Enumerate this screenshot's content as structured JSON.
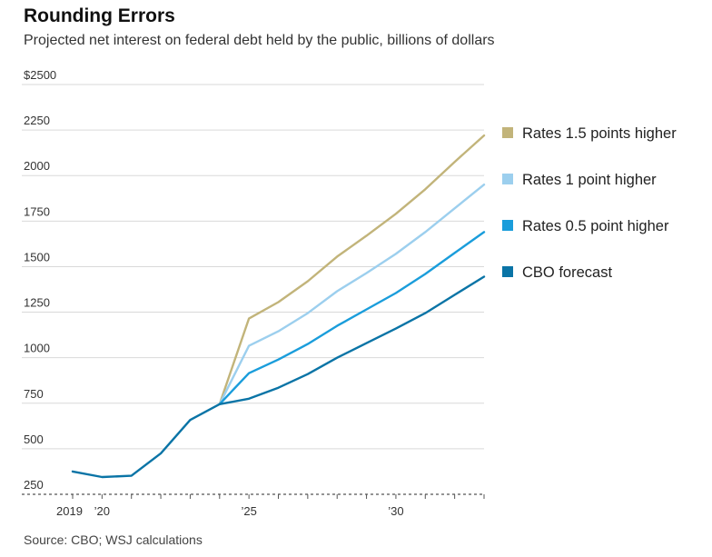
{
  "title": "Rounding Errors",
  "subtitle": "Projected net interest on federal debt held by the public, billions of dollars",
  "source": "Source: CBO; WSJ calculations",
  "chart_data": {
    "type": "line",
    "title": "Rounding Errors",
    "subtitle": "Projected net interest on federal debt held by the public, billions of dollars",
    "xlabel": "",
    "ylabel": "",
    "xlim": [
      2019,
      2033
    ],
    "ylim": [
      250,
      2500
    ],
    "y_ticks": [
      250,
      500,
      750,
      1000,
      1250,
      1500,
      1750,
      2000,
      2250,
      2500
    ],
    "y_tick_labels": [
      "250",
      "500",
      "750",
      "1000",
      "1250",
      "1500",
      "1750",
      "2000",
      "2250",
      "$2500"
    ],
    "x_ticks": [
      2019,
      2020,
      2025,
      2030
    ],
    "x_tick_labels": [
      "2019",
      "’20",
      "’25",
      "’30"
    ],
    "grid": true,
    "legend_position": "right",
    "series": [
      {
        "name": "Rates 1.5 points higher",
        "color": "#c2b47a",
        "x": [
          2024,
          2025,
          2026,
          2027,
          2028,
          2029,
          2030,
          2031,
          2032,
          2033
        ],
        "values": [
          745,
          1215,
          1305,
          1420,
          1555,
          1670,
          1790,
          1925,
          2075,
          2220
        ]
      },
      {
        "name": "Rates 1 point higher",
        "color": "#9ccfee",
        "x": [
          2024,
          2025,
          2026,
          2027,
          2028,
          2029,
          2030,
          2031,
          2032,
          2033
        ],
        "values": [
          745,
          1065,
          1145,
          1245,
          1365,
          1465,
          1570,
          1690,
          1820,
          1950
        ]
      },
      {
        "name": "Rates 0.5 point higher",
        "color": "#1a9ddb",
        "x": [
          2024,
          2025,
          2026,
          2027,
          2028,
          2029,
          2030,
          2031,
          2032,
          2033
        ],
        "values": [
          745,
          915,
          990,
          1075,
          1175,
          1265,
          1355,
          1460,
          1575,
          1690
        ]
      },
      {
        "name": "CBO forecast",
        "color": "#0a74a6",
        "x": [
          2019,
          2020,
          2021,
          2022,
          2023,
          2024,
          2025,
          2026,
          2027,
          2028,
          2029,
          2030,
          2031,
          2032,
          2033
        ],
        "values": [
          375,
          345,
          352,
          475,
          658,
          745,
          775,
          835,
          910,
          1000,
          1080,
          1160,
          1245,
          1345,
          1445
        ]
      }
    ]
  }
}
